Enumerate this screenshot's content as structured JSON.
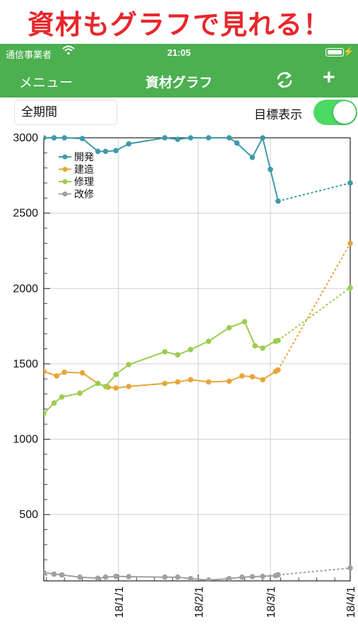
{
  "promo": {
    "text": "資材もグラフで見れる！",
    "color": "#e8262b"
  },
  "status_bar": {
    "carrier": "通信事業者",
    "time": "21:05",
    "wifi_icon": "wifi-icon",
    "battery_icon": "battery-icon"
  },
  "nav": {
    "menu_label": "メニュー",
    "title": "資材グラフ",
    "refresh_icon": "refresh-icon",
    "add_icon": "plus-icon",
    "background": "#4caf50"
  },
  "controls": {
    "period": "全期間",
    "goal_label": "目標表示",
    "goal_enabled": true
  },
  "chart_data": {
    "type": "line",
    "y_ticks": [
      500,
      1000,
      1500,
      2000,
      2500,
      3000
    ],
    "ylim": [
      60,
      3000
    ],
    "x_ticks": [
      "18/1/1",
      "18/2/1",
      "18/3/1",
      "18/4/1"
    ],
    "x_tick_days": [
      0,
      31,
      59,
      90
    ],
    "xlim": [
      -29,
      90
    ],
    "grid": true,
    "legend_position": "top-left",
    "projection_start_day": 62,
    "series": [
      {
        "name": "開発",
        "color": "#3d9aa8",
        "x": [
          -29,
          -25,
          -21,
          -14,
          -8,
          -5,
          -1,
          4,
          18,
          23,
          28,
          35,
          43,
          46,
          52,
          56,
          59,
          62,
          90
        ],
        "y": [
          3000,
          3000,
          3000,
          2995,
          2910,
          2910,
          2915,
          2960,
          3000,
          2990,
          3000,
          3000,
          3000,
          2965,
          2870,
          3000,
          2790,
          2580,
          2700
        ]
      },
      {
        "name": "建造",
        "color": "#e5a63a",
        "x": [
          -29,
          -24,
          -21,
          -14,
          -8,
          -4,
          -1,
          4,
          18,
          23,
          28,
          35,
          43,
          48,
          52,
          56,
          61,
          62,
          90
        ],
        "y": [
          1450,
          1420,
          1445,
          1440,
          1370,
          1345,
          1340,
          1350,
          1370,
          1380,
          1395,
          1380,
          1385,
          1420,
          1415,
          1395,
          1450,
          1460,
          2300
        ]
      },
      {
        "name": "修理",
        "color": "#9ccc50",
        "x": [
          -29,
          -25,
          -22,
          -15,
          -8,
          -5,
          -1,
          4,
          18,
          23,
          28,
          35,
          43,
          49,
          53,
          56,
          61,
          62,
          90
        ],
        "y": [
          1170,
          1240,
          1280,
          1305,
          1370,
          1350,
          1430,
          1495,
          1580,
          1560,
          1595,
          1650,
          1740,
          1780,
          1620,
          1605,
          1650,
          1655,
          2005
        ]
      },
      {
        "name": "改修",
        "color": "#a0a0a0",
        "x": [
          -29,
          -25,
          -22,
          -15,
          -8,
          -5,
          -1,
          4,
          18,
          23,
          28,
          35,
          43,
          48,
          52,
          56,
          61,
          62,
          90
        ],
        "y": [
          115,
          105,
          100,
          85,
          78,
          85,
          90,
          88,
          85,
          85,
          75,
          65,
          75,
          85,
          88,
          90,
          95,
          100,
          145
        ]
      }
    ]
  }
}
